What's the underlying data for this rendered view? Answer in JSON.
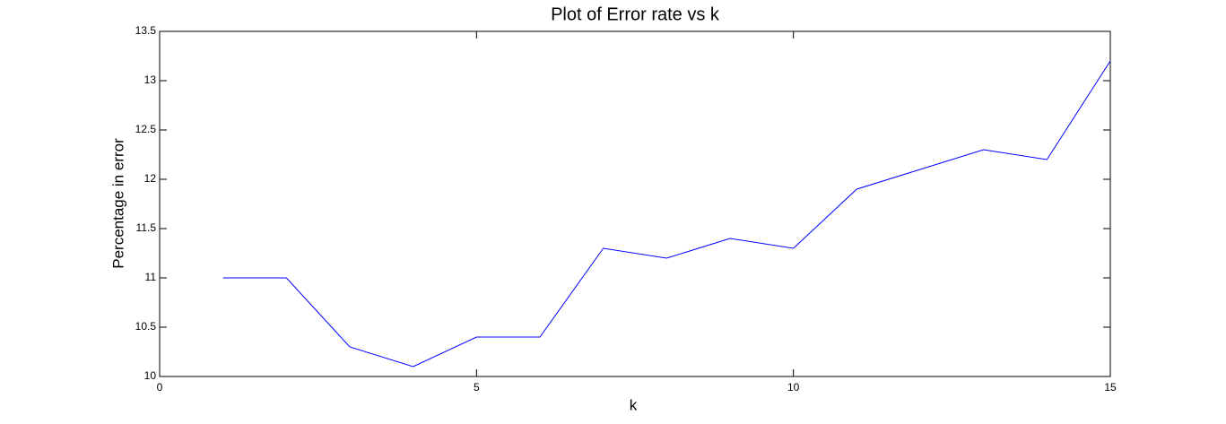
{
  "chart_data": {
    "type": "line",
    "title": "Plot of Error rate vs k",
    "xlabel": "k",
    "ylabel": "Percentage in error",
    "x": [
      1,
      2,
      3,
      4,
      5,
      6,
      7,
      8,
      9,
      10,
      11,
      12,
      13,
      14,
      15
    ],
    "values": [
      11,
      11,
      10.3,
      10.1,
      10.4,
      10.4,
      11.3,
      11.2,
      11.4,
      11.3,
      11.9,
      12.1,
      12.3,
      12.2,
      13.2
    ],
    "color": "#0000ff",
    "xlim": [
      0,
      15
    ],
    "xticks": [
      0,
      5,
      10,
      15
    ],
    "ylim": [
      10,
      13.5
    ],
    "yticks": [
      10,
      10.5,
      11,
      11.5,
      12,
      12.5,
      13,
      13.5
    ],
    "grid": false
  }
}
